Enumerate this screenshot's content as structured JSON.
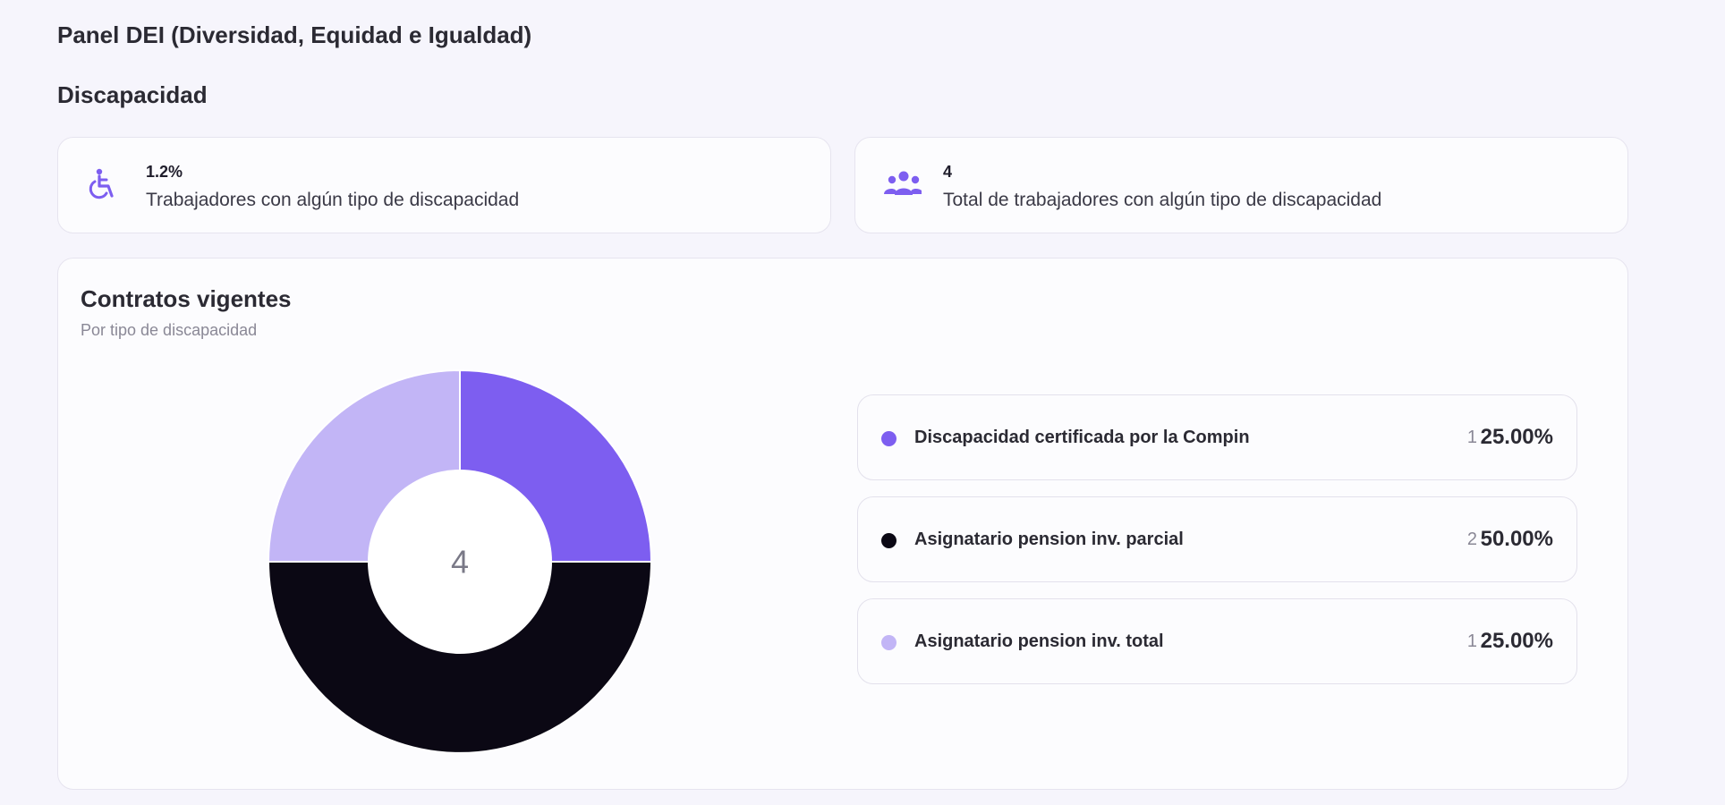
{
  "header": {
    "title": "Panel DEI (Diversidad, Equidad e Igualdad)",
    "section": "Discapacidad"
  },
  "stats": [
    {
      "icon": "wheelchair-icon",
      "value": "1.2%",
      "label": "Trabajadores con algún tipo de discapacidad"
    },
    {
      "icon": "group-icon",
      "value": "4",
      "label": "Total de trabajadores con algún tipo de discapacidad"
    }
  ],
  "accent_color": "#7d5ef0",
  "chart_card": {
    "title": "Contratos vigentes",
    "subtitle": "Por tipo de discapacidad",
    "total_label": "4"
  },
  "chart_data": {
    "type": "pie",
    "title": "Contratos vigentes",
    "subtitle": "Por tipo de discapacidad",
    "donut": true,
    "total": 4,
    "categories": [
      "Discapacidad certificada por la Compin",
      "Asignatario pension inv. parcial",
      "Asignatario pension inv. total"
    ],
    "values": [
      1,
      2,
      1
    ],
    "percentages": [
      "25.00%",
      "50.00%",
      "25.00%"
    ],
    "colors": [
      "#7d5ef0",
      "#0b0814",
      "#c2b5f6"
    ],
    "legend_position": "right"
  },
  "legend": [
    {
      "label": "Discapacidad certificada por la Compin",
      "count": "1",
      "pct": "25.00%",
      "color": "#7d5ef0"
    },
    {
      "label": "Asignatario pension inv. parcial",
      "count": "2",
      "pct": "50.00%",
      "color": "#0b0814"
    },
    {
      "label": "Asignatario pension inv. total",
      "count": "1",
      "pct": "25.00%",
      "color": "#c2b5f6"
    }
  ]
}
